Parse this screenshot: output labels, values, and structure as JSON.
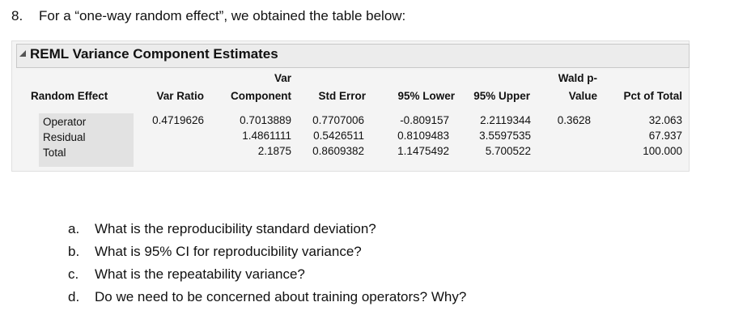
{
  "question": {
    "number": "8.",
    "text": "For a “one-way random effect”, we obtained the table below:"
  },
  "table": {
    "title": "REML Variance Component Estimates",
    "headers": [
      [
        "Random Effect"
      ],
      [
        "Var Ratio"
      ],
      [
        "Var",
        "Component"
      ],
      [
        "Std Error"
      ],
      [
        "95% Lower"
      ],
      [
        "95% Upper"
      ],
      [
        "Wald p-",
        "Value"
      ],
      [
        "Pct of Total"
      ]
    ],
    "rows": [
      [
        "Operator",
        "0.4719626",
        "0.7013889",
        "0.7707006",
        "-0.809157",
        "2.2119344",
        "0.3628",
        "32.063"
      ],
      [
        "Residual",
        null,
        "1.4861111",
        "0.5426511",
        "0.8109483",
        "3.5597535",
        null,
        "67.937"
      ],
      [
        "Total",
        null,
        "2.1875",
        "0.8609382",
        "1.1475492",
        "5.700522",
        null,
        "100.000"
      ]
    ]
  },
  "subquestions": [
    {
      "label": "a.",
      "text": "What is the reproducibility standard deviation?"
    },
    {
      "label": "b.",
      "text": "What is 95% CI for reproducibility variance?"
    },
    {
      "label": "c.",
      "text": "What is the repeatability variance?"
    },
    {
      "label": "d.",
      "text": "Do we need to be concerned about training operators? Why?"
    }
  ]
}
